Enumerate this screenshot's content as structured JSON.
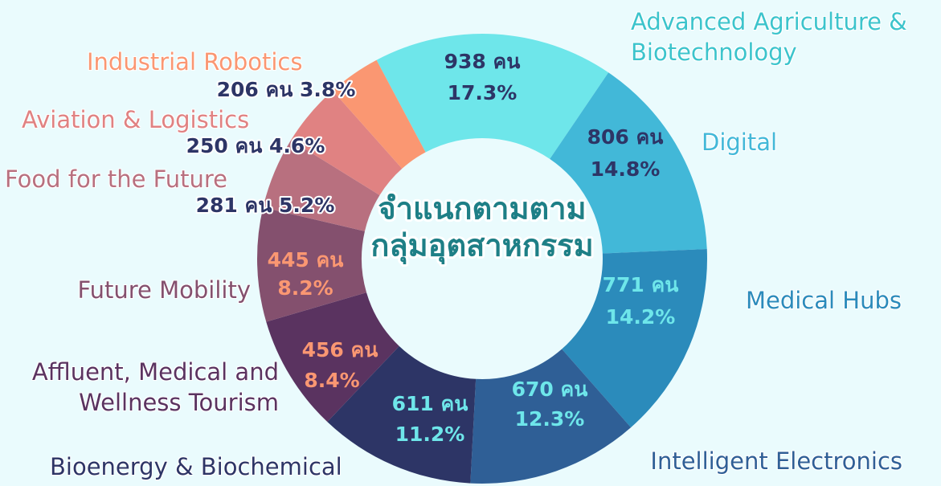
{
  "chart_data": {
    "type": "donut",
    "title_lines": [
      "จำแนกตามตาม",
      "กลุ่มอุตสาหกรรม"
    ],
    "categories": [
      "Advanced Agriculture & Biotechnology",
      "Digital",
      "Medical Hubs",
      "Intelligent Electronics",
      "Bioenergy & Biochemical",
      "Affluent, Medical and Wellness Tourism",
      "Future Mobility",
      "Food for the Future",
      "Aviation & Logistics",
      "Industrial Robotics"
    ],
    "values": [
      938,
      806,
      771,
      670,
      611,
      456,
      445,
      281,
      250,
      206
    ],
    "value_labels": [
      "938 คน",
      "806 คน",
      "771 คน",
      "670 คน",
      "611 คน",
      "456 คน",
      "445 คน",
      "281 คน",
      "250 คน",
      "206 คน"
    ],
    "percents": [
      17.3,
      14.8,
      14.2,
      12.3,
      11.2,
      8.4,
      8.2,
      5.2,
      4.6,
      3.8
    ],
    "percent_labels": [
      "17.3%",
      "14.8%",
      "14.2%",
      "12.3%",
      "11.2%",
      "8.4%",
      "8.2%",
      "5.2%",
      "4.6%",
      "3.8%"
    ],
    "colors": [
      "#6ee6ea",
      "#42b8d8",
      "#2b8bbb",
      "#2f5f96",
      "#2d3566",
      "#5a3360",
      "#84506e",
      "#b8707f",
      "#e08282",
      "#fa9772"
    ]
  }
}
